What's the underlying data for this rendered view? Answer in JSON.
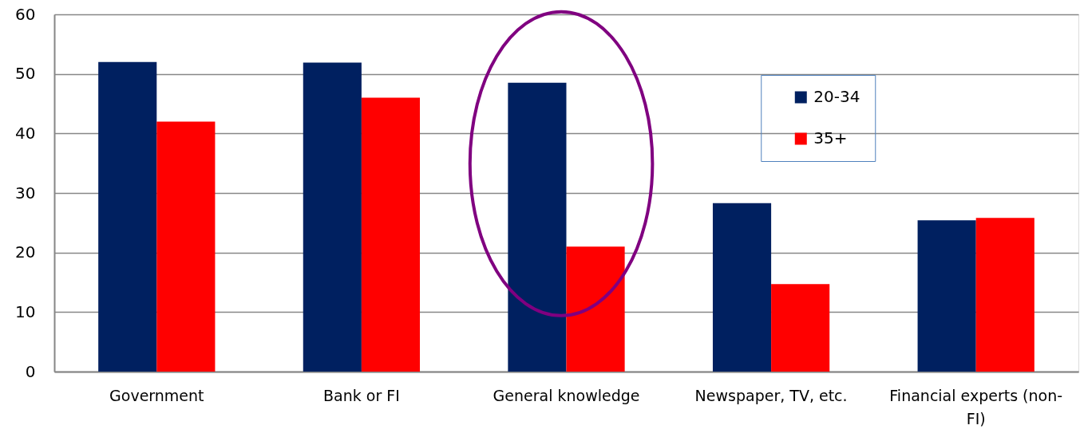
{
  "chart_data": {
    "type": "bar",
    "categories": [
      "Government",
      "Bank or FI",
      "General knowledge",
      "Newspaper, TV, etc.",
      "Financial experts (non-FI)"
    ],
    "series": [
      {
        "name": "20-34",
        "color": "#002060",
        "values": [
          52,
          51.9,
          48.5,
          28.3,
          25.4
        ]
      },
      {
        "name": "35+",
        "color": "#ff0000",
        "values": [
          42,
          46,
          21,
          14.7,
          25.8
        ]
      }
    ],
    "ylim": [
      0,
      60
    ],
    "yticks": [
      0,
      10,
      20,
      30,
      40,
      50,
      60
    ],
    "grid": "y",
    "legend": "top right"
  }
}
